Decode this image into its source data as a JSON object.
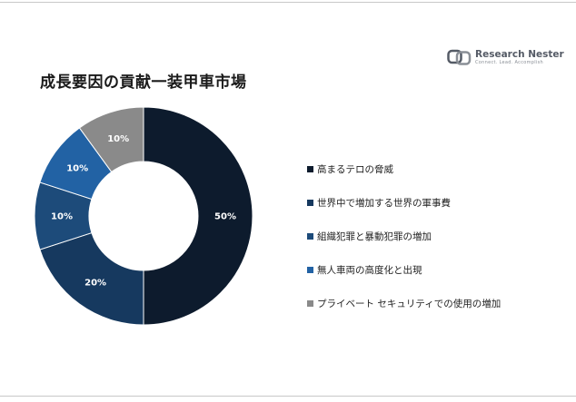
{
  "header": {
    "title": "成長要因の貢献一装甲車市場"
  },
  "logo": {
    "name": "Research Nester",
    "tagline": "Connect. Lead. Accomplish"
  },
  "chart_data": {
    "type": "pie",
    "title": "成長要因の貢献一装甲車市場",
    "categories": [
      "高まるテロの脅威",
      "世界中で増加する世界の軍事費",
      "組織犯罪と暴動犯罪の増加",
      "無人車両の高度化と出現",
      "プライベート セキュリティでの使用の増加"
    ],
    "values": [
      50,
      20,
      10,
      10,
      10
    ],
    "data_labels": [
      "50%",
      "20%",
      "10%",
      "10%",
      "10%"
    ],
    "colors": [
      "#0d1b2d",
      "#16395f",
      "#1d4b7a",
      "#2262a4",
      "#8a8a8a"
    ],
    "legend_position": "right"
  }
}
